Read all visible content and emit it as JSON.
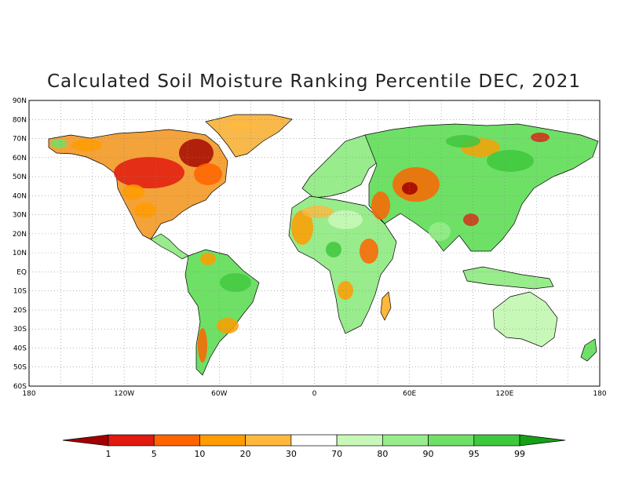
{
  "title": "Calculated Soil Moisture Ranking Percentile DEC, 2021",
  "map": {
    "lat_labels": [
      "90N",
      "80N",
      "70N",
      "60N",
      "50N",
      "40N",
      "30N",
      "20N",
      "10N",
      "EQ",
      "10S",
      "20S",
      "30S",
      "40S",
      "50S",
      "60S"
    ],
    "lon_labels": [
      "180",
      "120W",
      "60W",
      "0",
      "60E",
      "120E",
      "180"
    ],
    "lon_range": [
      -180,
      180
    ],
    "lat_range": [
      -60,
      90
    ],
    "grid": "dotted"
  },
  "legend": {
    "orientation": "horizontal",
    "placement": "bottom",
    "tick_labels": [
      "1",
      "5",
      "10",
      "20",
      "30",
      "70",
      "80",
      "90",
      "95",
      "99"
    ],
    "colors": [
      "#a00000",
      "#e01a10",
      "#ff6400",
      "#ff9c00",
      "#ffb83c",
      "#ffffff",
      "#c8f8b8",
      "#98ec8c",
      "#6ee066",
      "#3ec83c",
      "#16a016"
    ]
  }
}
